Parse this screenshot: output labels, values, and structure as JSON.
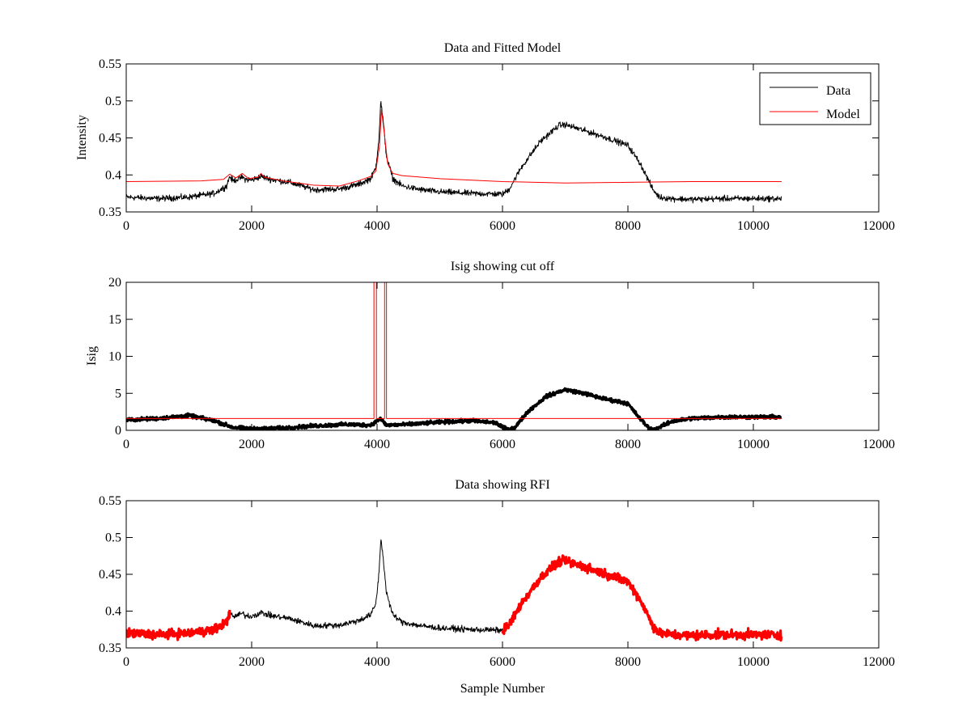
{
  "figure": {
    "background": "#ffffff",
    "data_color": "#000000",
    "model_color": "#ff0000",
    "rfi_color": "#ff0000"
  },
  "chart_data": [
    {
      "type": "line",
      "title": "Data and Fitted Model",
      "xlabel": "",
      "ylabel": "Intensity",
      "xlim": [
        0,
        12000
      ],
      "ylim": [
        0.35,
        0.55
      ],
      "xticks": [
        0,
        2000,
        4000,
        6000,
        8000,
        10000,
        12000
      ],
      "xtick_labels": [
        "0",
        "2000",
        "4000",
        "6000",
        "8000",
        "10000",
        "12000"
      ],
      "yticks": [
        0.35,
        0.4,
        0.45,
        0.5,
        0.55
      ],
      "ytick_labels": [
        "0.35",
        "0.4",
        "0.45",
        "0.5",
        "0.55"
      ],
      "legend": {
        "position": "top-right",
        "entries": [
          "Data",
          "Model"
        ]
      },
      "series": [
        {
          "name": "Data",
          "color": "#000000",
          "noise": 0.006,
          "x": [
            0,
            500,
            1000,
            1400,
            1600,
            1650,
            1700,
            1800,
            1850,
            1900,
            2000,
            2150,
            2300,
            2600,
            3000,
            3400,
            3700,
            3900,
            3980,
            4030,
            4060,
            4100,
            4150,
            4250,
            4400,
            4700,
            5000,
            5500,
            6000,
            6100,
            6300,
            6600,
            6900,
            7000,
            7300,
            7600,
            8000,
            8200,
            8400,
            8500,
            8700,
            9000,
            9500,
            10000,
            10450
          ],
          "y": [
            0.37,
            0.368,
            0.37,
            0.375,
            0.385,
            0.398,
            0.392,
            0.395,
            0.397,
            0.394,
            0.393,
            0.398,
            0.394,
            0.39,
            0.38,
            0.381,
            0.387,
            0.395,
            0.41,
            0.45,
            0.5,
            0.47,
            0.425,
            0.395,
            0.385,
            0.38,
            0.377,
            0.375,
            0.374,
            0.38,
            0.41,
            0.445,
            0.467,
            0.468,
            0.46,
            0.452,
            0.44,
            0.415,
            0.38,
            0.37,
            0.368,
            0.367,
            0.368,
            0.368,
            0.368
          ]
        },
        {
          "name": "Model",
          "color": "#ff0000",
          "noise": 0.0,
          "x": [
            0,
            1200,
            1550,
            1650,
            1750,
            1850,
            1950,
            2100,
            2150,
            2200,
            2500,
            3000,
            3400,
            3700,
            3900,
            3980,
            4040,
            4070,
            4110,
            4170,
            4250,
            4400,
            4700,
            5000,
            6000,
            7000,
            8000,
            9000,
            10450
          ],
          "y": [
            0.391,
            0.392,
            0.394,
            0.401,
            0.396,
            0.402,
            0.395,
            0.397,
            0.402,
            0.397,
            0.392,
            0.386,
            0.385,
            0.392,
            0.398,
            0.405,
            0.44,
            0.488,
            0.46,
            0.415,
            0.402,
            0.399,
            0.397,
            0.395,
            0.391,
            0.389,
            0.39,
            0.391,
            0.391
          ]
        }
      ]
    },
    {
      "type": "line",
      "title": "Isig showing cut off",
      "xlabel": "",
      "ylabel": "Isig",
      "xlim": [
        0,
        12000
      ],
      "ylim": [
        0,
        20
      ],
      "xticks": [
        0,
        2000,
        4000,
        6000,
        8000,
        10000,
        12000
      ],
      "xtick_labels": [
        "0",
        "2000",
        "4000",
        "6000",
        "8000",
        "10000",
        "12000"
      ],
      "yticks": [
        0,
        5,
        10,
        15,
        20
      ],
      "ytick_labels": [
        "0",
        "5",
        "10",
        "15",
        "20"
      ],
      "series": [
        {
          "color": "#000000",
          "noise": 0.35,
          "x": [
            0,
            500,
            1000,
            1400,
            1700,
            2000,
            2500,
            3000,
            3500,
            3900,
            4050,
            4150,
            4500,
            5000,
            5500,
            5900,
            6000,
            6100,
            6200,
            6400,
            6700,
            7000,
            7300,
            7600,
            7900,
            8000,
            8200,
            8350,
            8450,
            8700,
            9000,
            9500,
            10000,
            10450
          ],
          "y": [
            1.4,
            1.6,
            2.0,
            1.3,
            0.4,
            0.2,
            0.3,
            0.6,
            0.8,
            0.7,
            1.6,
            0.7,
            0.8,
            1.1,
            1.3,
            1.0,
            0.4,
            0.1,
            0.4,
            2.5,
            4.6,
            5.5,
            5.0,
            4.3,
            3.8,
            3.6,
            1.5,
            0.2,
            0.2,
            1.2,
            1.6,
            1.8,
            1.8,
            1.8
          ]
        },
        {
          "color": "#ff0000",
          "noise": 0.0,
          "x": [
            0,
            3950,
            3950,
            3990,
            3990,
            4120,
            4120,
            4150,
            4150,
            10450
          ],
          "y": [
            1.6,
            1.6,
            20.5,
            20.5,
            1.6,
            1.6,
            20.5,
            20.5,
            1.6,
            1.6
          ]
        }
      ]
    },
    {
      "type": "line",
      "title": "Data showing RFI",
      "xlabel": "Sample Number",
      "ylabel": "",
      "xlim": [
        0,
        12000
      ],
      "ylim": [
        0.35,
        0.55
      ],
      "xticks": [
        0,
        2000,
        4000,
        6000,
        8000,
        10000,
        12000
      ],
      "xtick_labels": [
        "0",
        "2000",
        "4000",
        "6000",
        "8000",
        "10000",
        "12000"
      ],
      "yticks": [
        0.35,
        0.4,
        0.45,
        0.5,
        0.55
      ],
      "ytick_labels": [
        "0.35",
        "0.4",
        "0.45",
        "0.5",
        "0.55"
      ],
      "series": [
        {
          "color": "#000000",
          "noise": 0.006,
          "x": [
            1650,
            1700,
            1800,
            1850,
            1900,
            2000,
            2150,
            2300,
            2600,
            3000,
            3400,
            3700,
            3900,
            3980,
            4030,
            4060,
            4100,
            4150,
            4250,
            4400,
            4700,
            5000,
            5500,
            6000
          ],
          "y": [
            0.398,
            0.392,
            0.395,
            0.397,
            0.394,
            0.393,
            0.398,
            0.394,
            0.39,
            0.38,
            0.381,
            0.387,
            0.395,
            0.41,
            0.45,
            0.5,
            0.47,
            0.425,
            0.395,
            0.385,
            0.38,
            0.377,
            0.375,
            0.374
          ]
        },
        {
          "color": "#ff0000",
          "noise": 0.009,
          "x": [
            0,
            500,
            1000,
            1400,
            1600,
            1650
          ],
          "y": [
            0.37,
            0.368,
            0.37,
            0.375,
            0.385,
            0.398
          ]
        },
        {
          "color": "#ff0000",
          "noise": 0.009,
          "x": [
            6000,
            6100,
            6300,
            6600,
            6900,
            7000,
            7300,
            7600,
            8000,
            8200,
            8400,
            8500,
            8700,
            9000,
            9500,
            10000,
            10450
          ],
          "y": [
            0.374,
            0.38,
            0.41,
            0.445,
            0.467,
            0.468,
            0.46,
            0.452,
            0.44,
            0.415,
            0.38,
            0.37,
            0.368,
            0.367,
            0.368,
            0.368,
            0.368
          ]
        }
      ]
    }
  ]
}
